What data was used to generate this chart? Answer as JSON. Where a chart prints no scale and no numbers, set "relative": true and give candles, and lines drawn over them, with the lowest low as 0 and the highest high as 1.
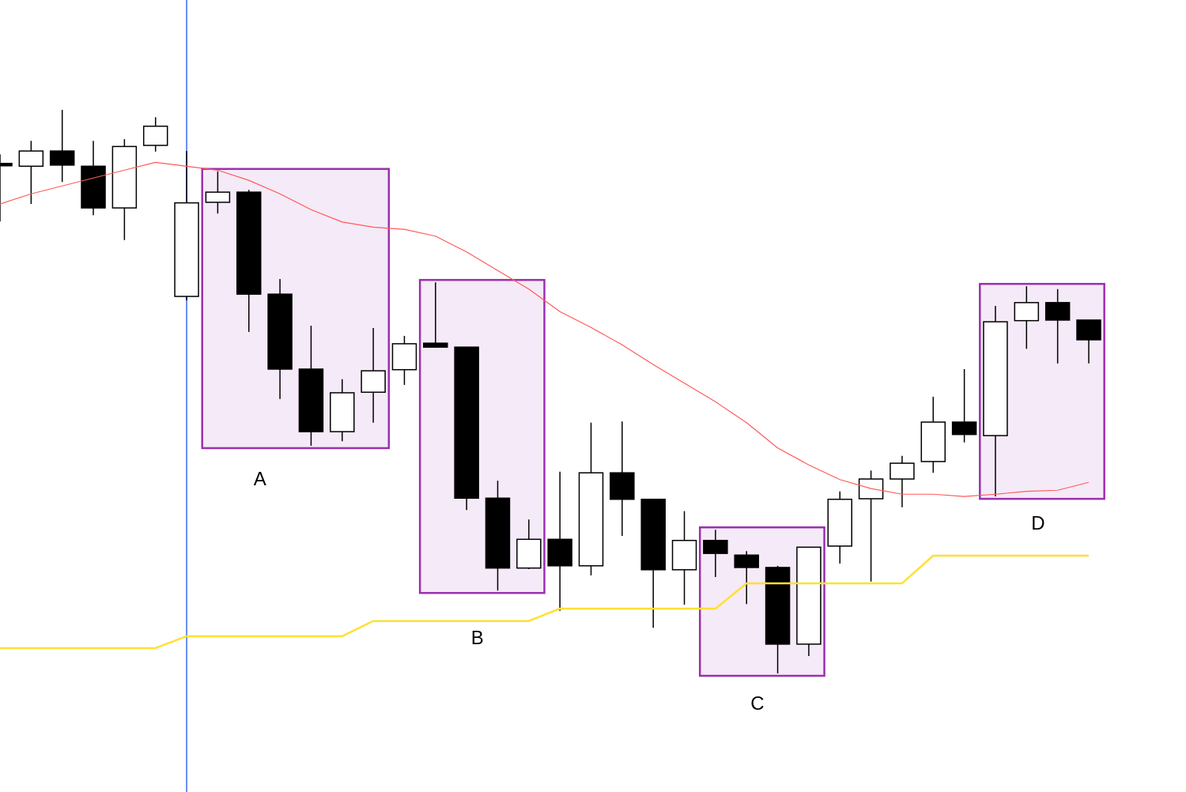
{
  "chart_data": {
    "type": "candlestick",
    "relative": true,
    "categories": [
      null,
      null,
      null,
      null,
      null,
      null,
      null,
      null,
      null,
      null,
      null,
      null,
      null,
      null,
      null,
      null,
      null,
      null,
      null,
      null,
      null,
      null,
      null,
      null,
      null,
      null,
      null,
      null,
      null,
      null,
      null,
      null,
      null,
      null,
      null,
      null
    ],
    "ohlc": [
      [
        0.905,
        0.921,
        0.802,
        0.902
      ],
      [
        0.9,
        0.945,
        0.833,
        0.927
      ],
      [
        0.927,
        1.0,
        0.872,
        0.902
      ],
      [
        0.9,
        0.945,
        0.813,
        0.826
      ],
      [
        0.826,
        0.948,
        0.769,
        0.935
      ],
      [
        0.937,
        0.987,
        0.926,
        0.971
      ],
      [
        0.669,
        0.927,
        0.662,
        0.835
      ],
      [
        0.836,
        0.891,
        0.816,
        0.854
      ],
      [
        0.854,
        0.858,
        0.606,
        0.673
      ],
      [
        0.673,
        0.7,
        0.487,
        0.54
      ],
      [
        0.54,
        0.617,
        0.404,
        0.429
      ],
      [
        0.429,
        0.522,
        0.412,
        0.498
      ],
      [
        0.499,
        0.613,
        0.445,
        0.537
      ],
      [
        0.539,
        0.599,
        0.512,
        0.585
      ],
      [
        0.586,
        0.694,
        0.578,
        0.579
      ],
      [
        0.579,
        0.579,
        0.29,
        0.311
      ],
      [
        0.311,
        0.342,
        0.147,
        0.187
      ],
      [
        0.187,
        0.273,
        0.185,
        0.238
      ],
      [
        0.238,
        0.358,
        0.111,
        0.191
      ],
      [
        0.191,
        0.445,
        0.174,
        0.356
      ],
      [
        0.356,
        0.447,
        0.244,
        0.309
      ],
      [
        0.309,
        0.309,
        0.081,
        0.184
      ],
      [
        0.184,
        0.288,
        0.122,
        0.236
      ],
      [
        0.236,
        0.255,
        0.171,
        0.213
      ],
      [
        0.21,
        0.217,
        0.123,
        0.188
      ],
      [
        0.188,
        0.191,
        0.0,
        0.052
      ],
      [
        0.052,
        0.224,
        0.031,
        0.224
      ],
      [
        0.226,
        0.323,
        0.195,
        0.309
      ],
      [
        0.31,
        0.36,
        0.163,
        0.345
      ],
      [
        0.345,
        0.386,
        0.295,
        0.373
      ],
      [
        0.376,
        0.491,
        0.356,
        0.446
      ],
      [
        0.446,
        0.54,
        0.41,
        0.424
      ],
      [
        0.422,
        0.652,
        0.314,
        0.624
      ],
      [
        0.626,
        0.687,
        0.576,
        0.658
      ],
      [
        0.658,
        0.682,
        0.55,
        0.627
      ],
      [
        0.627,
        0.627,
        0.55,
        0.592
      ]
    ],
    "series": [
      {
        "type": "line",
        "color": "#ff5a5a",
        "values": [
          0.833,
          0.851,
          0.865,
          0.879,
          0.893,
          0.907,
          0.9,
          0.893,
          0.875,
          0.851,
          0.823,
          0.801,
          0.792,
          0.788,
          0.776,
          0.748,
          0.715,
          0.682,
          0.642,
          0.614,
          0.583,
          0.548,
          0.515,
          0.482,
          0.445,
          0.4,
          0.37,
          0.344,
          0.328,
          0.318,
          0.318,
          0.314,
          0.318,
          0.323,
          0.325,
          0.339
        ]
      },
      {
        "type": "line",
        "color": "#ffe033",
        "values": [
          0.045,
          0.045,
          0.045,
          0.045,
          0.045,
          0.045,
          0.066,
          0.066,
          0.066,
          0.066,
          0.066,
          0.066,
          0.093,
          0.093,
          0.093,
          0.093,
          0.093,
          0.093,
          0.115,
          0.115,
          0.115,
          0.115,
          0.115,
          0.115,
          0.16,
          0.16,
          0.16,
          0.16,
          0.16,
          0.16,
          0.209,
          0.209,
          0.209,
          0.209,
          0.209,
          0.209
        ]
      }
    ],
    "annotations": [
      "A",
      "B",
      "C",
      "D"
    ]
  }
}
